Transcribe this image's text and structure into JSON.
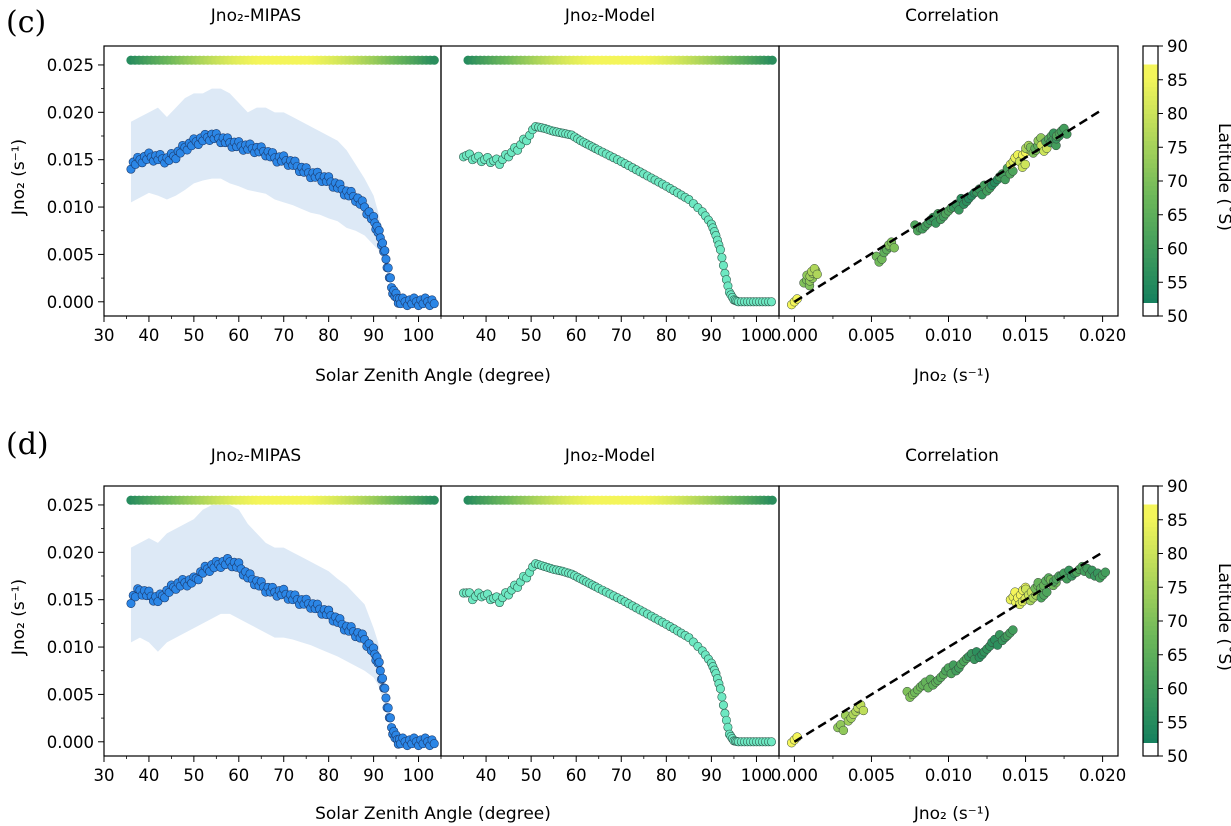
{
  "colors": {
    "mipas": "#2b86e6",
    "mipas_band": "#dde9f6",
    "model": "#6ee8c2",
    "regression": "#000000",
    "lat_low": "#0b7a5f",
    "lat_mid": "#6db85a",
    "lat_high": "#f4f55a"
  },
  "panels": [
    {
      "label": "(c)",
      "titles": [
        "Jno₂-MIPAS",
        "Jno₂-Model",
        "Correlation"
      ],
      "sza_xlabel": "Solar Zenith Angle (degree)",
      "corr_xlabel": "Jno₂ (s⁻¹)",
      "ylabel": "Jno₂ (s⁻¹)",
      "colorbar_label": "Latitude (˚S)",
      "colorbar_ticks": [
        "50",
        "55",
        "60",
        "65",
        "70",
        "75",
        "80",
        "85",
        "90"
      ],
      "y_ticks": [
        "0.000",
        "0.005",
        "0.010",
        "0.015",
        "0.020",
        "0.025"
      ],
      "sza_ticks": [
        "30",
        "40",
        "50",
        "60",
        "70",
        "80",
        "90",
        "100"
      ],
      "sza_ticks_model": [
        "40",
        "50",
        "60",
        "70",
        "80",
        "90",
        "100"
      ],
      "corr_ticks": [
        "0.000",
        "0.005",
        "0.010",
        "0.015",
        "0.020"
      ]
    },
    {
      "label": "(d)",
      "titles": [
        "Jno₂-MIPAS",
        "Jno₂-Model",
        "Correlation"
      ],
      "sza_xlabel": "Solar Zenith Angle (degree)",
      "corr_xlabel": "Jno₂ (s⁻¹)",
      "ylabel": "Jno₂ (s⁻¹)",
      "colorbar_label": "Latitude (˚S)",
      "colorbar_ticks": [
        "50",
        "55",
        "60",
        "65",
        "70",
        "75",
        "80",
        "85",
        "90"
      ],
      "y_ticks": [
        "0.000",
        "0.005",
        "0.010",
        "0.015",
        "0.020",
        "0.025"
      ],
      "sza_ticks": [
        "30",
        "40",
        "50",
        "60",
        "70",
        "80",
        "90",
        "100"
      ],
      "sza_ticks_model": [
        "40",
        "50",
        "60",
        "70",
        "80",
        "90",
        "100"
      ],
      "corr_ticks": [
        "0.000",
        "0.005",
        "0.010",
        "0.015",
        "0.020"
      ]
    }
  ],
  "chart_data": [
    {
      "panel": "(c)",
      "type": "scatter",
      "subplots": [
        "Jno₂-MIPAS",
        "Jno₂-Model",
        "Correlation"
      ],
      "xlim_sza": [
        30,
        105
      ],
      "ylim": [
        -0.0015,
        0.027
      ],
      "xlim_corr": [
        -0.001,
        0.021
      ],
      "colorbar_range": [
        50,
        90
      ],
      "mipas_curve": {
        "sza": [
          36,
          38,
          40,
          42,
          44,
          46,
          48,
          50,
          52,
          54,
          56,
          58,
          60,
          62,
          64,
          66,
          68,
          70,
          72,
          74,
          76,
          78,
          80,
          82,
          84,
          86,
          88,
          90,
          91,
          92,
          93,
          94,
          95,
          96,
          98,
          100,
          102,
          104
        ],
        "j": [
          0.0144,
          0.015,
          0.0153,
          0.0152,
          0.015,
          0.0155,
          0.0163,
          0.0168,
          0.0172,
          0.0175,
          0.0172,
          0.0168,
          0.0165,
          0.0163,
          0.0161,
          0.0158,
          0.0152,
          0.015,
          0.0146,
          0.014,
          0.0135,
          0.0132,
          0.0128,
          0.0122,
          0.0115,
          0.011,
          0.01,
          0.0086,
          0.0075,
          0.006,
          0.004,
          0.0015,
          0.0005,
          0,
          0,
          0,
          0,
          0
        ]
      },
      "mipas_band": {
        "upper": [
          0.019,
          0.0195,
          0.02,
          0.0205,
          0.0195,
          0.0205,
          0.0215,
          0.022,
          0.022,
          0.0225,
          0.0225,
          0.022,
          0.021,
          0.02,
          0.0205,
          0.0205,
          0.02,
          0.02,
          0.0195,
          0.019,
          0.0185,
          0.018,
          0.0175,
          0.017,
          0.016,
          0.0145,
          0.013,
          0.0112,
          0.0095,
          0.0075,
          0.005,
          0.002,
          0.0008,
          0,
          0,
          0,
          0,
          0
        ],
        "lower": [
          0.0105,
          0.011,
          0.0115,
          0.0112,
          0.0108,
          0.0112,
          0.0118,
          0.0125,
          0.0128,
          0.013,
          0.013,
          0.0125,
          0.0122,
          0.0118,
          0.0116,
          0.0114,
          0.0108,
          0.0105,
          0.0102,
          0.0098,
          0.0094,
          0.0092,
          0.0088,
          0.0085,
          0.0078,
          0.0075,
          0.007,
          0.006,
          0.0055,
          0.0045,
          0.003,
          0.0008,
          0.0002,
          0,
          0,
          0,
          0,
          0
        ]
      },
      "model_curve": {
        "sza": [
          35,
          37,
          39,
          41,
          43,
          45,
          47,
          49,
          51,
          53,
          55,
          57,
          59,
          61,
          65,
          70,
          75,
          80,
          85,
          88,
          90,
          91,
          92,
          93,
          94,
          95,
          96,
          98,
          100,
          102,
          104
        ],
        "j": [
          0.0158,
          0.0155,
          0.0153,
          0.0152,
          0.015,
          0.0158,
          0.0165,
          0.0175,
          0.0185,
          0.0183,
          0.018,
          0.0178,
          0.0176,
          0.017,
          0.016,
          0.0148,
          0.0135,
          0.0122,
          0.0108,
          0.0095,
          0.0082,
          0.007,
          0.0055,
          0.003,
          0.001,
          0.0002,
          0,
          0,
          0,
          0,
          0
        ]
      },
      "latitude_strip_j": 0.0255,
      "correlation": {
        "x": [
          0.0,
          0.0008,
          0.001,
          0.0012,
          0.0013,
          0.0055,
          0.006,
          0.0063,
          0.008,
          0.0085,
          0.009,
          0.0095,
          0.01,
          0.0105,
          0.011,
          0.0115,
          0.012,
          0.0125,
          0.013,
          0.0135,
          0.014,
          0.0142,
          0.0145,
          0.0148,
          0.015,
          0.0152,
          0.0155,
          0.0158,
          0.016,
          0.0162,
          0.0165,
          0.0168,
          0.017,
          0.0172,
          0.0175
        ],
        "y": [
          0.0,
          0.002,
          0.0025,
          0.003,
          0.0032,
          0.0045,
          0.0055,
          0.006,
          0.0078,
          0.008,
          0.0086,
          0.009,
          0.0096,
          0.01,
          0.0106,
          0.0112,
          0.0116,
          0.012,
          0.0126,
          0.0132,
          0.0138,
          0.0148,
          0.0152,
          0.0145,
          0.0158,
          0.0162,
          0.016,
          0.0165,
          0.017,
          0.0162,
          0.0172,
          0.0168,
          0.0175,
          0.0178,
          0.018
        ],
        "lat": [
          88,
          70,
          72,
          74,
          76,
          68,
          65,
          70,
          62,
          60,
          58,
          60,
          62,
          58,
          56,
          55,
          58,
          60,
          55,
          60,
          62,
          82,
          84,
          80,
          86,
          75,
          70,
          65,
          72,
          80,
          62,
          60,
          58,
          62,
          60
        ]
      },
      "regression_line": {
        "x": [
          0,
          0.02
        ],
        "y": [
          0,
          0.0203
        ]
      }
    },
    {
      "panel": "(d)",
      "type": "scatter",
      "subplots": [
        "Jno₂-MIPAS",
        "Jno₂-Model",
        "Correlation"
      ],
      "xlim_sza": [
        30,
        105
      ],
      "ylim": [
        -0.0015,
        0.027
      ],
      "xlim_corr": [
        -0.001,
        0.021
      ],
      "colorbar_range": [
        50,
        90
      ],
      "mipas_curve": {
        "sza": [
          36,
          38,
          40,
          42,
          44,
          46,
          48,
          50,
          52,
          54,
          56,
          58,
          60,
          62,
          64,
          66,
          68,
          70,
          72,
          74,
          76,
          78,
          80,
          82,
          84,
          86,
          88,
          90,
          91,
          92,
          93,
          94,
          95,
          96,
          98,
          100,
          102,
          104
        ],
        "j": [
          0.015,
          0.016,
          0.0155,
          0.015,
          0.0158,
          0.0165,
          0.0168,
          0.017,
          0.018,
          0.0185,
          0.0188,
          0.019,
          0.0185,
          0.0175,
          0.0168,
          0.0162,
          0.0158,
          0.0157,
          0.0152,
          0.0148,
          0.0145,
          0.014,
          0.0135,
          0.0128,
          0.012,
          0.0115,
          0.0108,
          0.0095,
          0.0085,
          0.0065,
          0.004,
          0.0015,
          0.0003,
          0,
          0,
          0,
          0,
          0
        ]
      },
      "mipas_band": {
        "upper": [
          0.0205,
          0.021,
          0.0215,
          0.021,
          0.022,
          0.0225,
          0.023,
          0.0235,
          0.0245,
          0.025,
          0.025,
          0.025,
          0.0245,
          0.023,
          0.022,
          0.021,
          0.0205,
          0.0205,
          0.02,
          0.0195,
          0.019,
          0.0185,
          0.018,
          0.0172,
          0.0165,
          0.0155,
          0.0145,
          0.012,
          0.0105,
          0.008,
          0.0055,
          0.002,
          0.0005,
          0,
          0,
          0,
          0,
          0
        ],
        "lower": [
          0.0105,
          0.011,
          0.0105,
          0.0095,
          0.0105,
          0.011,
          0.0115,
          0.012,
          0.0125,
          0.013,
          0.0135,
          0.0135,
          0.013,
          0.0125,
          0.012,
          0.0115,
          0.011,
          0.011,
          0.0108,
          0.0105,
          0.0102,
          0.0098,
          0.0094,
          0.009,
          0.0085,
          0.008,
          0.0075,
          0.0068,
          0.006,
          0.0045,
          0.0025,
          0.0008,
          0.0001,
          0,
          0,
          0,
          0,
          0
        ]
      },
      "model_curve": {
        "sza": [
          35,
          37,
          39,
          41,
          43,
          45,
          47,
          49,
          51,
          53,
          55,
          57,
          59,
          61,
          65,
          70,
          75,
          80,
          85,
          88,
          90,
          91,
          92,
          93,
          94,
          95,
          96,
          98,
          100,
          102,
          104
        ],
        "j": [
          0.0162,
          0.0155,
          0.0158,
          0.0155,
          0.0152,
          0.016,
          0.0168,
          0.0178,
          0.0188,
          0.0185,
          0.0182,
          0.018,
          0.0177,
          0.0172,
          0.0162,
          0.015,
          0.0137,
          0.0124,
          0.011,
          0.0096,
          0.0083,
          0.0072,
          0.0056,
          0.003,
          0.0008,
          0.0001,
          0,
          0,
          0,
          0,
          0
        ]
      },
      "latitude_strip_j": 0.0255,
      "correlation": {
        "x": [
          0.0,
          0.003,
          0.0035,
          0.004,
          0.0043,
          0.0075,
          0.008,
          0.0085,
          0.009,
          0.0095,
          0.01,
          0.0105,
          0.011,
          0.0115,
          0.012,
          0.0125,
          0.013,
          0.0135,
          0.014,
          0.0142,
          0.0145,
          0.0148,
          0.015,
          0.0152,
          0.0155,
          0.0158,
          0.016,
          0.0162,
          0.0165,
          0.0168,
          0.017,
          0.0175,
          0.018,
          0.0185,
          0.019,
          0.0195,
          0.02
        ],
        "y": [
          0.0002,
          0.0015,
          0.0025,
          0.0032,
          0.0036,
          0.005,
          0.0055,
          0.006,
          0.0063,
          0.0068,
          0.0075,
          0.0078,
          0.0085,
          0.009,
          0.0092,
          0.0098,
          0.0105,
          0.011,
          0.0115,
          0.015,
          0.0155,
          0.0148,
          0.016,
          0.0158,
          0.0152,
          0.0162,
          0.0165,
          0.0155,
          0.017,
          0.0168,
          0.0172,
          0.0175,
          0.0178,
          0.0182,
          0.018,
          0.0178,
          0.0176
        ],
        "lat": [
          88,
          72,
          74,
          76,
          78,
          70,
          68,
          66,
          65,
          64,
          62,
          60,
          62,
          58,
          56,
          57,
          56,
          58,
          60,
          84,
          86,
          82,
          84,
          80,
          75,
          68,
          66,
          62,
          64,
          68,
          62,
          60,
          58,
          62,
          60,
          58,
          60
        ]
      },
      "regression_line": {
        "x": [
          0,
          0.02
        ],
        "y": [
          0,
          0.02
        ]
      }
    }
  ]
}
